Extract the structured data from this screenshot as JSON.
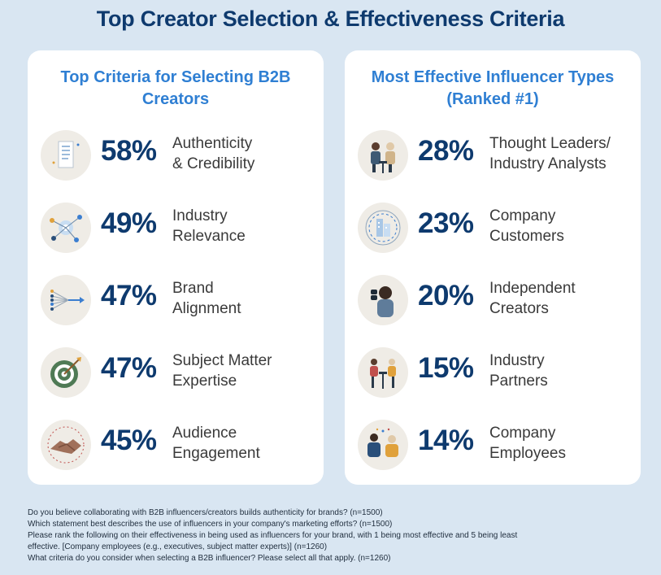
{
  "title": "Top Creator Selection & Effectiveness Criteria",
  "chart_data": [
    {
      "type": "bar",
      "title": "Top Criteria for Selecting B2B Creators",
      "categories": [
        "Authenticity & Credibility",
        "Industry Relevance",
        "Brand Alignment",
        "Subject Matter Expertise",
        "Audience Engagement"
      ],
      "values": [
        58,
        49,
        47,
        47,
        45
      ],
      "value_labels": [
        "58%",
        "49%",
        "47%",
        "47%",
        "45%"
      ],
      "label_lines": [
        [
          "Authenticity",
          "& Credibility"
        ],
        [
          "Industry",
          "Relevance"
        ],
        [
          "Brand",
          "Alignment"
        ],
        [
          "Subject Matter",
          "Expertise"
        ],
        [
          "Audience",
          "Engagement"
        ]
      ],
      "icons": [
        "document-icon",
        "network-icon",
        "alignment-arrows-icon",
        "target-icon",
        "handshake-icon"
      ]
    },
    {
      "type": "bar",
      "title": "Most Effective Influencer Types (Ranked #1)",
      "categories": [
        "Thought Leaders/ Industry Analysts",
        "Company Customers",
        "Independent Creators",
        "Industry Partners",
        "Company Employees"
      ],
      "values": [
        28,
        23,
        20,
        15,
        14
      ],
      "value_labels": [
        "28%",
        "23%",
        "20%",
        "15%",
        "14%"
      ],
      "label_lines": [
        [
          "Thought Leaders/",
          "Industry Analysts"
        ],
        [
          "Company",
          "Customers"
        ],
        [
          "Independent",
          "Creators"
        ],
        [
          "Industry",
          "Partners"
        ],
        [
          "Company",
          "Employees"
        ]
      ],
      "icons": [
        "thought-leaders-icon",
        "customers-building-icon",
        "creator-binoculars-icon",
        "partners-icon",
        "employees-icon"
      ]
    }
  ],
  "notes": [
    "Do you believe collaborating with B2B influencers/creators builds authenticity for brands? (n=1500)",
    "Which statement best describes the use of influencers in your company's marketing efforts? (n=1500)",
    "Please rank the following on their effectiveness in being used as influencers for your brand, with 1 being most effective and 5 being least",
    "effective. [Company employees (e.g., executives, subject matter experts)] (n=1260)",
    "What criteria do you consider when selecting a B2B influencer? Please select all that apply. (n=1260)"
  ],
  "colors": {
    "title": "#0e3a6e",
    "card_title": "#2f7fd3",
    "background": "#d9e6f2",
    "card": "#ffffff"
  }
}
